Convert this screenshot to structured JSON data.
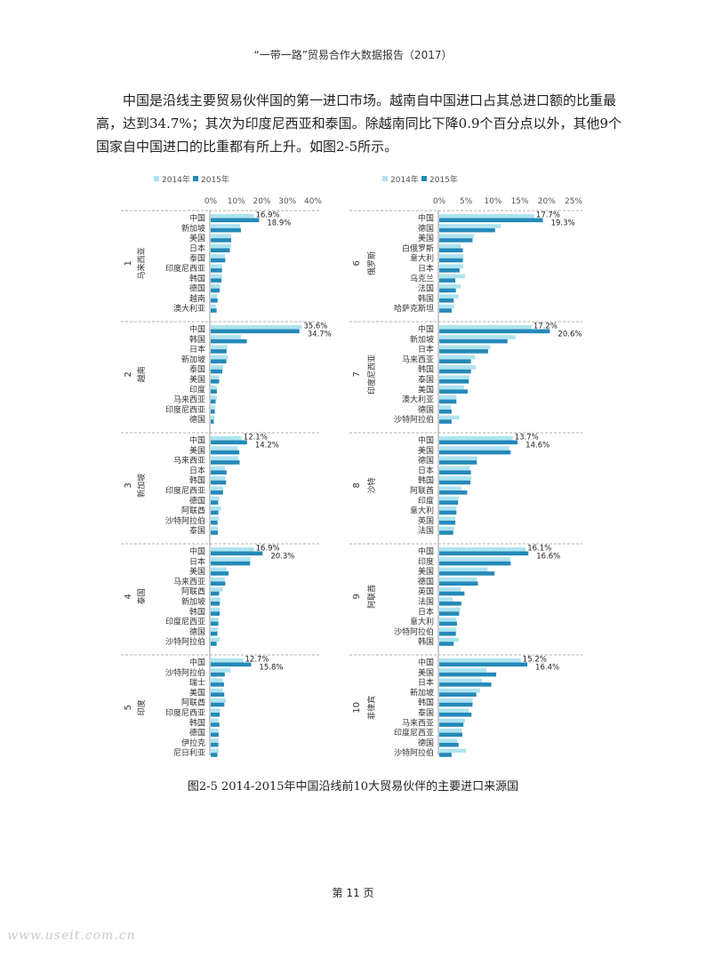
{
  "header": {
    "title": "“一带一路”贸易合作大数据报告（2017）"
  },
  "paragraph": {
    "text": "中国是沿线主要贸易伙伴国的第一进口市场。越南自中国进口占其总进口额的比重最高，达到34.7%；其次为印度尼西亚和泰国。除越南同比下降0.9个百分点以外，其他9个国家自中国进口的比重都有所上升。如图2-5所示。"
  },
  "caption": {
    "text": "图2-5   2014-2015年中国沿线前10大贸易伙伴的主要进口来源国"
  },
  "page_number": {
    "text": "第 11 页"
  },
  "watermark": {
    "text": "www.useit.com.cn"
  },
  "colors": {
    "y2014": "#aee3f0",
    "y2015": "#2589b9",
    "axis": "#999999",
    "separator": "#999999"
  },
  "chart_data": [
    {
      "type": "bar",
      "orientation": "horizontal",
      "legend": [
        "2014年",
        "2015年"
      ],
      "xlim": [
        0,
        40
      ],
      "xticks": [
        "0%",
        "10%",
        "20%",
        "30%",
        "40%"
      ],
      "panels": [
        {
          "num": "1",
          "country": "马来西亚",
          "categories": [
            "中国",
            "新加坡",
            "美国",
            "日本",
            "泰国",
            "印度尼西亚",
            "韩国",
            "德国",
            "越南",
            "澳大利亚"
          ],
          "y2014": [
            16.9,
            11.5,
            8.0,
            8.0,
            5.6,
            4.5,
            4.5,
            3.7,
            2.5,
            2.0
          ],
          "y2015": [
            18.9,
            11.8,
            8.0,
            7.5,
            5.7,
            4.4,
            4.2,
            3.5,
            2.7,
            2.3
          ],
          "labels": [
            "16.9%",
            "18.9%"
          ]
        },
        {
          "num": "2",
          "country": "越南",
          "categories": [
            "中国",
            "韩国",
            "日本",
            "新加坡",
            "泰国",
            "美国",
            "印度",
            "马来西亚",
            "印度尼西亚",
            "德国"
          ],
          "y2014": [
            35.6,
            11.9,
            6.5,
            6.8,
            4.8,
            3.3,
            2.3,
            2.4,
            1.8,
            1.5
          ],
          "y2015": [
            34.7,
            14.1,
            6.2,
            6.1,
            4.5,
            3.3,
            2.4,
            1.9,
            1.6,
            1.2
          ],
          "labels": [
            "35.6%",
            "34.7%"
          ]
        },
        {
          "num": "3",
          "country": "新加坡",
          "categories": [
            "中国",
            "美国",
            "马来西亚",
            "日本",
            "韩国",
            "印度尼西亚",
            "德国",
            "阿联酋",
            "沙特阿拉伯",
            "泰国"
          ],
          "y2014": [
            12.1,
            10.6,
            10.7,
            5.5,
            5.7,
            4.9,
            3.4,
            4.0,
            3.3,
            2.8
          ],
          "y2015": [
            14.2,
            11.2,
            11.3,
            6.2,
            6.0,
            4.8,
            2.9,
            3.0,
            2.7,
            2.8
          ],
          "labels": [
            "12.1%",
            "14.2%"
          ]
        },
        {
          "num": "4",
          "country": "泰国",
          "categories": [
            "中国",
            "日本",
            "美国",
            "马来西亚",
            "阿联酋",
            "新加坡",
            "韩国",
            "印度尼西亚",
            "德国",
            "沙特阿拉伯"
          ],
          "y2014": [
            16.9,
            15.6,
            6.2,
            5.5,
            4.7,
            3.8,
            3.6,
            3.0,
            2.8,
            3.6
          ],
          "y2015": [
            20.3,
            15.4,
            7.0,
            5.7,
            3.3,
            3.5,
            3.5,
            3.0,
            2.6,
            2.3
          ],
          "labels": [
            "16.9%",
            "20.3%"
          ]
        },
        {
          "num": "5",
          "country": "印度",
          "categories": [
            "中国",
            "沙特阿拉伯",
            "瑞士",
            "美国",
            "阿联酋",
            "印度尼西亚",
            "韩国",
            "德国",
            "伊拉克",
            "尼日利亚"
          ],
          "y2014": [
            12.7,
            7.7,
            4.8,
            4.7,
            5.9,
            3.6,
            3.0,
            3.0,
            3.1,
            3.1
          ],
          "y2015": [
            15.8,
            5.5,
            5.2,
            5.3,
            5.3,
            3.5,
            3.4,
            3.1,
            3.0,
            2.6
          ],
          "labels": [
            "12.7%",
            "15.8%"
          ]
        }
      ]
    },
    {
      "type": "bar",
      "orientation": "horizontal",
      "legend": [
        "2014年",
        "2015年"
      ],
      "xlim": [
        0,
        25
      ],
      "xticks": [
        "0%",
        "5%",
        "10%",
        "15%",
        "20%",
        "25%"
      ],
      "panels": [
        {
          "num": "6",
          "country": "俄罗斯",
          "categories": [
            "中国",
            "德国",
            "美国",
            "白俄罗斯",
            "意大利",
            "日本",
            "乌克兰",
            "法国",
            "韩国",
            "哈萨克斯坦"
          ],
          "y2014": [
            17.7,
            11.5,
            6.5,
            4.0,
            4.5,
            4.5,
            4.8,
            4.0,
            3.6,
            2.8
          ],
          "y2015": [
            19.3,
            10.4,
            6.2,
            4.4,
            4.4,
            3.8,
            3.0,
            3.1,
            2.7,
            2.3
          ],
          "labels": [
            "17.7%",
            "19.3%"
          ]
        },
        {
          "num": "7",
          "country": "印度尼西亚",
          "categories": [
            "中国",
            "新加坡",
            "日本",
            "马来西亚",
            "韩国",
            "泰国",
            "美国",
            "澳大利亚",
            "德国",
            "沙特阿拉伯"
          ],
          "y2014": [
            17.2,
            14.2,
            9.5,
            6.7,
            6.8,
            5.6,
            4.6,
            3.2,
            2.2,
            3.7
          ],
          "y2015": [
            20.6,
            12.7,
            9.1,
            5.9,
            5.9,
            5.5,
            5.3,
            3.2,
            2.3,
            2.3
          ],
          "labels": [
            "17.2%",
            "20.6%"
          ]
        },
        {
          "num": "8",
          "country": "沙特",
          "categories": [
            "中国",
            "美国",
            "德国",
            "日本",
            "韩国",
            "阿联酋",
            "印度",
            "意大利",
            "英国",
            "法国"
          ],
          "y2014": [
            13.7,
            13.0,
            7.1,
            5.7,
            6.0,
            4.1,
            3.6,
            3.2,
            3.0,
            2.8
          ],
          "y2015": [
            14.6,
            13.3,
            7.0,
            5.9,
            5.8,
            5.2,
            3.5,
            3.2,
            3.0,
            2.6
          ],
          "labels": [
            "13.7%",
            "14.6%"
          ]
        },
        {
          "num": "9",
          "country": "阿联酋",
          "categories": [
            "中国",
            "印度",
            "美国",
            "德国",
            "英国",
            "法国",
            "日本",
            "意大利",
            "沙特阿拉伯",
            "韩国"
          ],
          "y2014": [
            16.1,
            13.2,
            9.0,
            7.0,
            4.0,
            2.5,
            3.9,
            3.2,
            3.2,
            3.6
          ],
          "y2015": [
            16.6,
            13.3,
            10.3,
            7.2,
            4.7,
            4.1,
            3.7,
            3.3,
            3.1,
            2.7
          ],
          "labels": [
            "16.1%",
            "16.6%"
          ]
        },
        {
          "num": "10",
          "country": "菲律宾",
          "categories": [
            "中国",
            "美国",
            "日本",
            "新加坡",
            "韩国",
            "泰国",
            "马来西亚",
            "印度尼西亚",
            "德国",
            "沙特阿拉伯"
          ],
          "y2014": [
            15.2,
            8.8,
            8.0,
            7.6,
            6.2,
            5.5,
            4.8,
            4.2,
            3.3,
            5.0
          ],
          "y2015": [
            16.4,
            10.6,
            9.7,
            6.9,
            6.2,
            6.0,
            4.5,
            4.3,
            3.6,
            2.3
          ],
          "labels": [
            "15.2%",
            "16.4%"
          ]
        }
      ]
    }
  ]
}
